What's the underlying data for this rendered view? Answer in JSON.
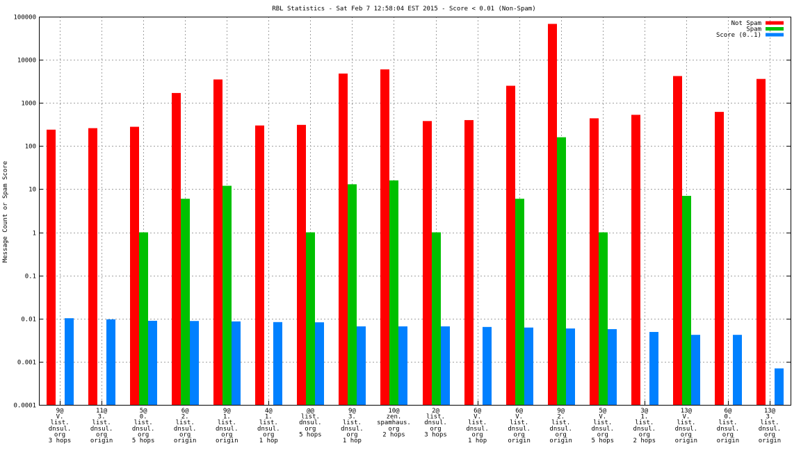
{
  "chart_data": {
    "type": "bar",
    "title": "RBL Statistics - Sat Feb  7 12:58:04 EST 2015 - Score < 0.01 (Non-Spam)",
    "xlabel": "",
    "ylabel": "Message Count or Spam Score",
    "yscale": "log",
    "ylim": [
      0.0001,
      100000
    ],
    "yticks": [
      "0.0001",
      "0.001",
      "0.01",
      "0.1",
      "1",
      "10",
      "100",
      "1000",
      "10000",
      "100000"
    ],
    "grid": true,
    "legend_position": "top-right",
    "categories": [
      [
        "9@",
        "V.",
        "list.",
        "dnsul.",
        "org",
        "3 hops"
      ],
      [
        "11@",
        "3.",
        "list.",
        "dnsul.",
        "org",
        "origin"
      ],
      [
        "5@",
        "0.",
        "list.",
        "dnsul.",
        "org",
        "5 hops"
      ],
      [
        "6@",
        "2.",
        "list.",
        "dnsul.",
        "org",
        "origin"
      ],
      [
        "9@",
        "1.",
        "list.",
        "dnsul.",
        "org",
        "origin"
      ],
      [
        "4@",
        "1.",
        "list.",
        "dnsul.",
        "org",
        "1 hop"
      ],
      [
        "@@",
        "list.",
        "dnsul.",
        "org",
        "5 hops"
      ],
      [
        "9@",
        "3.",
        "list.",
        "dnsul.",
        "org",
        "1 hop"
      ],
      [
        "10@",
        "zen.",
        "spamhaus.",
        "org",
        "2 hops"
      ],
      [
        "2@",
        "list.",
        "dnsul.",
        "org",
        "3 hops"
      ],
      [
        "6@",
        "V.",
        "list.",
        "dnsul.",
        "org",
        "1 hop"
      ],
      [
        "6@",
        "V.",
        "list.",
        "dnsul.",
        "org",
        "origin"
      ],
      [
        "9@",
        "2.",
        "list.",
        "dnsul.",
        "org",
        "origin"
      ],
      [
        "5@",
        "V.",
        "list.",
        "dnsul.",
        "org",
        "5 hops"
      ],
      [
        "3@",
        "1.",
        "list.",
        "dnsul.",
        "org",
        "2 hops"
      ],
      [
        "13@",
        "V.",
        "list.",
        "dnsul.",
        "org",
        "origin"
      ],
      [
        "6@",
        "0.",
        "list.",
        "dnsul.",
        "org",
        "origin"
      ],
      [
        "13@",
        "3.",
        "list.",
        "dnsul.",
        "org",
        "origin"
      ]
    ],
    "series": [
      {
        "name": "Not Spam",
        "color": "#ff0000",
        "values": [
          240,
          260,
          280,
          1700,
          3500,
          300,
          310,
          4800,
          6000,
          380,
          400,
          2500,
          68000,
          440,
          530,
          4200,
          620,
          3600
        ]
      },
      {
        "name": "Spam",
        "color": "#00c000",
        "values": [
          null,
          null,
          1,
          6,
          12,
          null,
          1,
          13,
          16,
          1,
          null,
          6,
          160,
          1,
          null,
          7,
          null,
          null
        ]
      },
      {
        "name": "Score (0..1)",
        "color": "#0080ff",
        "values": [
          0.0102,
          0.0096,
          0.0089,
          0.0088,
          0.0086,
          0.0083,
          0.0082,
          0.0066,
          0.0066,
          0.0066,
          0.0064,
          0.0062,
          0.0059,
          0.0057,
          0.0049,
          0.0042,
          0.0042,
          0.0007
        ]
      }
    ]
  }
}
